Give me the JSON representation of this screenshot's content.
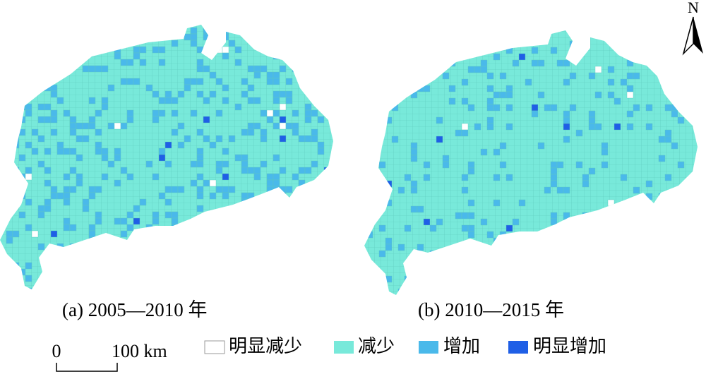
{
  "panels": [
    {
      "caption": "(a) 2005—2010 年"
    },
    {
      "caption": "(b) 2010—2015 年"
    }
  ],
  "legend": [
    "明显减少",
    "减少",
    "增加",
    "明显增加"
  ],
  "scale_bar": {
    "start": "0",
    "end": "100 km"
  },
  "north": "N"
}
